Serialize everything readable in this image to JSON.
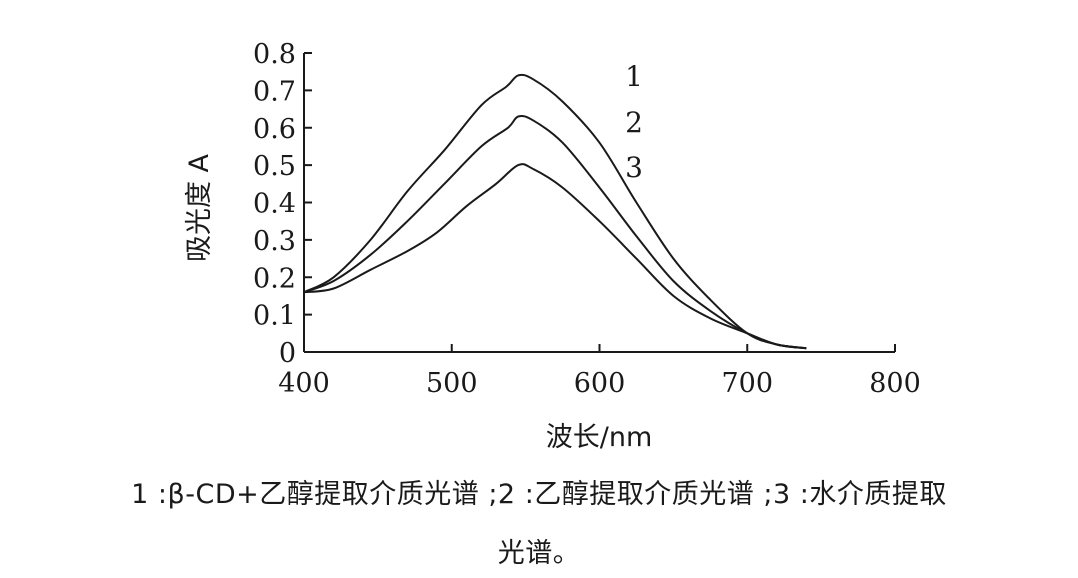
{
  "chart_data": {
    "type": "line",
    "title": "",
    "xlabel": "波长/nm",
    "ylabel": "吸光度 A",
    "xlim": [
      400,
      800
    ],
    "ylim": [
      0,
      0.8
    ],
    "xticks": [
      "400",
      "500",
      "600",
      "700",
      "800"
    ],
    "yticks": [
      "0",
      "0.1",
      "0.2",
      "0.3",
      "0.4",
      "0.5",
      "0.6",
      "0.7",
      "0.8"
    ],
    "grid": false,
    "legend_position": "top-right",
    "series": [
      {
        "name": "1",
        "x": [
          400,
          420,
          445,
          470,
          495,
          520,
          537,
          545,
          555,
          575,
          600,
          625,
          650,
          675,
          700,
          720,
          740
        ],
        "y": [
          0.16,
          0.2,
          0.3,
          0.43,
          0.54,
          0.66,
          0.71,
          0.74,
          0.73,
          0.67,
          0.56,
          0.4,
          0.25,
          0.14,
          0.05,
          0.02,
          0.01
        ]
      },
      {
        "name": "2",
        "x": [
          400,
          420,
          445,
          470,
          495,
          520,
          538,
          545,
          555,
          575,
          600,
          625,
          650,
          675,
          700,
          720,
          740
        ],
        "y": [
          0.16,
          0.19,
          0.26,
          0.35,
          0.45,
          0.55,
          0.6,
          0.63,
          0.62,
          0.56,
          0.44,
          0.31,
          0.19,
          0.11,
          0.05,
          0.02,
          0.01
        ]
      },
      {
        "name": "3",
        "x": [
          400,
          420,
          445,
          470,
          490,
          510,
          530,
          545,
          555,
          575,
          600,
          625,
          650,
          675,
          700,
          720,
          740
        ],
        "y": [
          0.16,
          0.17,
          0.22,
          0.27,
          0.32,
          0.39,
          0.45,
          0.5,
          0.49,
          0.44,
          0.35,
          0.25,
          0.15,
          0.09,
          0.05,
          0.02,
          0.01
        ]
      }
    ]
  },
  "caption": {
    "line1": "1 :β-CD+乙醇提取介质光谱 ;2 :乙醇提取介质光谱 ;3 :水介质提取",
    "line2": "光谱。"
  }
}
